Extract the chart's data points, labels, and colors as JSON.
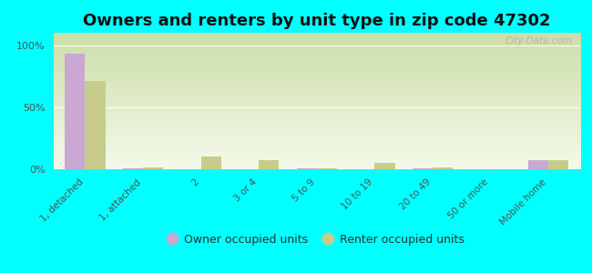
{
  "title": "Owners and renters by unit type in zip code 47302",
  "categories": [
    "1, detached",
    "1, attached",
    "2",
    "3 or 4",
    "5 to 9",
    "10 to 19",
    "20 to 49",
    "50 or more",
    "Mobile home"
  ],
  "owner_values": [
    93,
    1,
    0,
    0,
    0.5,
    0,
    0.5,
    0,
    7
  ],
  "renter_values": [
    71,
    1.5,
    10,
    7,
    1,
    5,
    1.5,
    0,
    7
  ],
  "owner_color": "#c9a8d4",
  "renter_color": "#c8cc8a",
  "background_color": "#00ffff",
  "grad_top_color": "#ccdea8",
  "grad_bottom_color": "#f4faea",
  "title_fontsize": 13,
  "ylabel_ticks": [
    "0%",
    "50%",
    "100%"
  ],
  "yticks": [
    0,
    50,
    100
  ],
  "watermark": "City-Data.com",
  "bar_width": 0.35,
  "xlim_left": -0.55,
  "xlim_right": 8.55,
  "ylim_top": 110
}
